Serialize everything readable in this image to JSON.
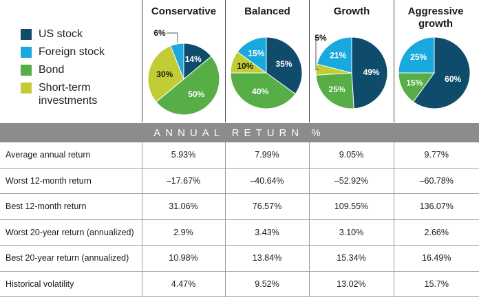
{
  "legend": [
    {
      "label": "US stock",
      "color": "#0f4c6b"
    },
    {
      "label": "Foreign stock",
      "color": "#19a9de"
    },
    {
      "label": "Bond",
      "color": "#57ae46"
    },
    {
      "label": "Short-term investments",
      "color": "#c2cc35"
    }
  ],
  "columns": [
    "Conservative",
    "Balanced",
    "Growth",
    "Aggressive growth"
  ],
  "chart_data": [
    {
      "type": "pie",
      "title": "Conservative",
      "slices": [
        {
          "label": "US stock",
          "value": 14,
          "text": "14%"
        },
        {
          "label": "Bond",
          "value": 50,
          "text": "50%"
        },
        {
          "label": "Short-term investments",
          "value": 30,
          "text": "30%"
        },
        {
          "label": "Foreign stock",
          "value": 6,
          "text": "6%"
        }
      ]
    },
    {
      "type": "pie",
      "title": "Balanced",
      "slices": [
        {
          "label": "US stock",
          "value": 35,
          "text": "35%"
        },
        {
          "label": "Bond",
          "value": 40,
          "text": "40%"
        },
        {
          "label": "Short-term investments",
          "value": 10,
          "text": "10%"
        },
        {
          "label": "Foreign stock",
          "value": 15,
          "text": "15%"
        }
      ]
    },
    {
      "type": "pie",
      "title": "Growth",
      "slices": [
        {
          "label": "US stock",
          "value": 49,
          "text": "49%"
        },
        {
          "label": "Bond",
          "value": 25,
          "text": "25%"
        },
        {
          "label": "Short-term investments",
          "value": 5,
          "text": "5%"
        },
        {
          "label": "Foreign stock",
          "value": 21,
          "text": "21%"
        }
      ]
    },
    {
      "type": "pie",
      "title": "Aggressive growth",
      "slices": [
        {
          "label": "US stock",
          "value": 60,
          "text": "60%"
        },
        {
          "label": "Bond",
          "value": 15,
          "text": "15%"
        },
        {
          "label": "Foreign stock",
          "value": 25,
          "text": "25%"
        }
      ]
    }
  ],
  "band_title": "ANNUAL RETURN %",
  "table": {
    "rows": [
      {
        "label": "Average annual return",
        "values": [
          "5.93%",
          "7.99%",
          "9.05%",
          "9.77%"
        ]
      },
      {
        "label": "Worst 12-month return",
        "values": [
          "–17.67%",
          "–40.64%",
          "–52.92%",
          "–60.78%"
        ]
      },
      {
        "label": "Best 12-month return",
        "values": [
          "31.06%",
          "76.57%",
          "109.55%",
          "136.07%"
        ]
      },
      {
        "label": "Worst 20-year return (annualized)",
        "values": [
          "2.9%",
          "3.43%",
          "3.10%",
          "2.66%"
        ]
      },
      {
        "label": "Best 20-year return (annualized)",
        "values": [
          "10.98%",
          "13.84%",
          "15.34%",
          "16.49%"
        ]
      },
      {
        "label": "Historical volatility",
        "values": [
          "4.47%",
          "9.52%",
          "13.02%",
          "15.7%"
        ]
      }
    ]
  }
}
